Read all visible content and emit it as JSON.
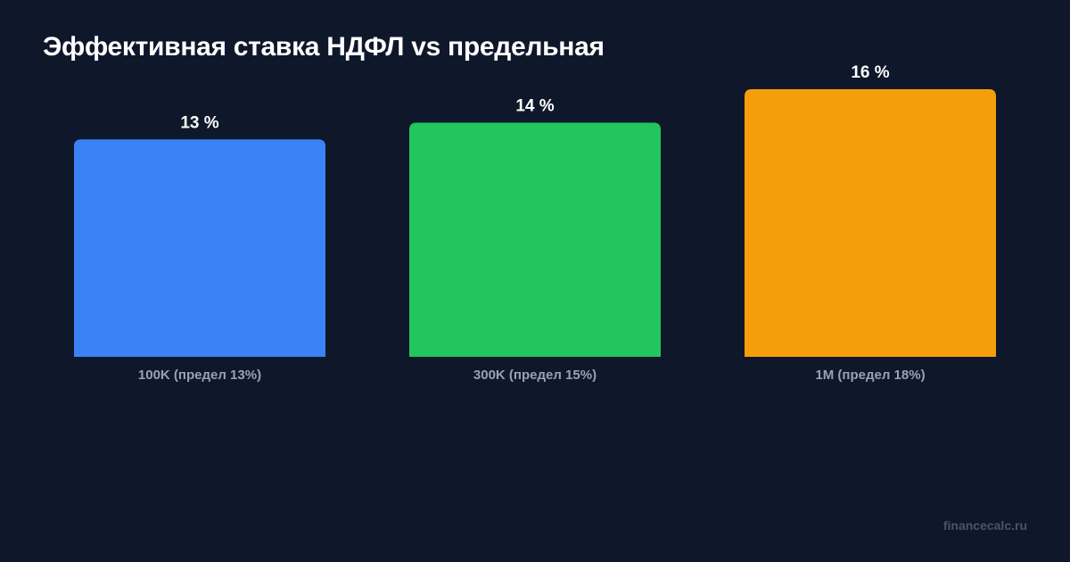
{
  "page": {
    "background": "#0f172a",
    "watermark": "financecalc.ru"
  },
  "chart_data": {
    "type": "bar",
    "title": "Эффективная ставка НДФЛ vs предельная",
    "xlabel": "",
    "ylabel": "",
    "categories": [
      "100K (предел 13%)",
      "300K (предел 15%)",
      "1M (предел 18%)"
    ],
    "values": [
      13,
      14,
      16
    ],
    "value_labels": [
      "13 %",
      "14 %",
      "16 %"
    ],
    "colors": [
      "#3b82f6",
      "#22c55e",
      "#f59e0b"
    ],
    "ylim": [
      0,
      16
    ],
    "grid": false,
    "legend": "none"
  }
}
